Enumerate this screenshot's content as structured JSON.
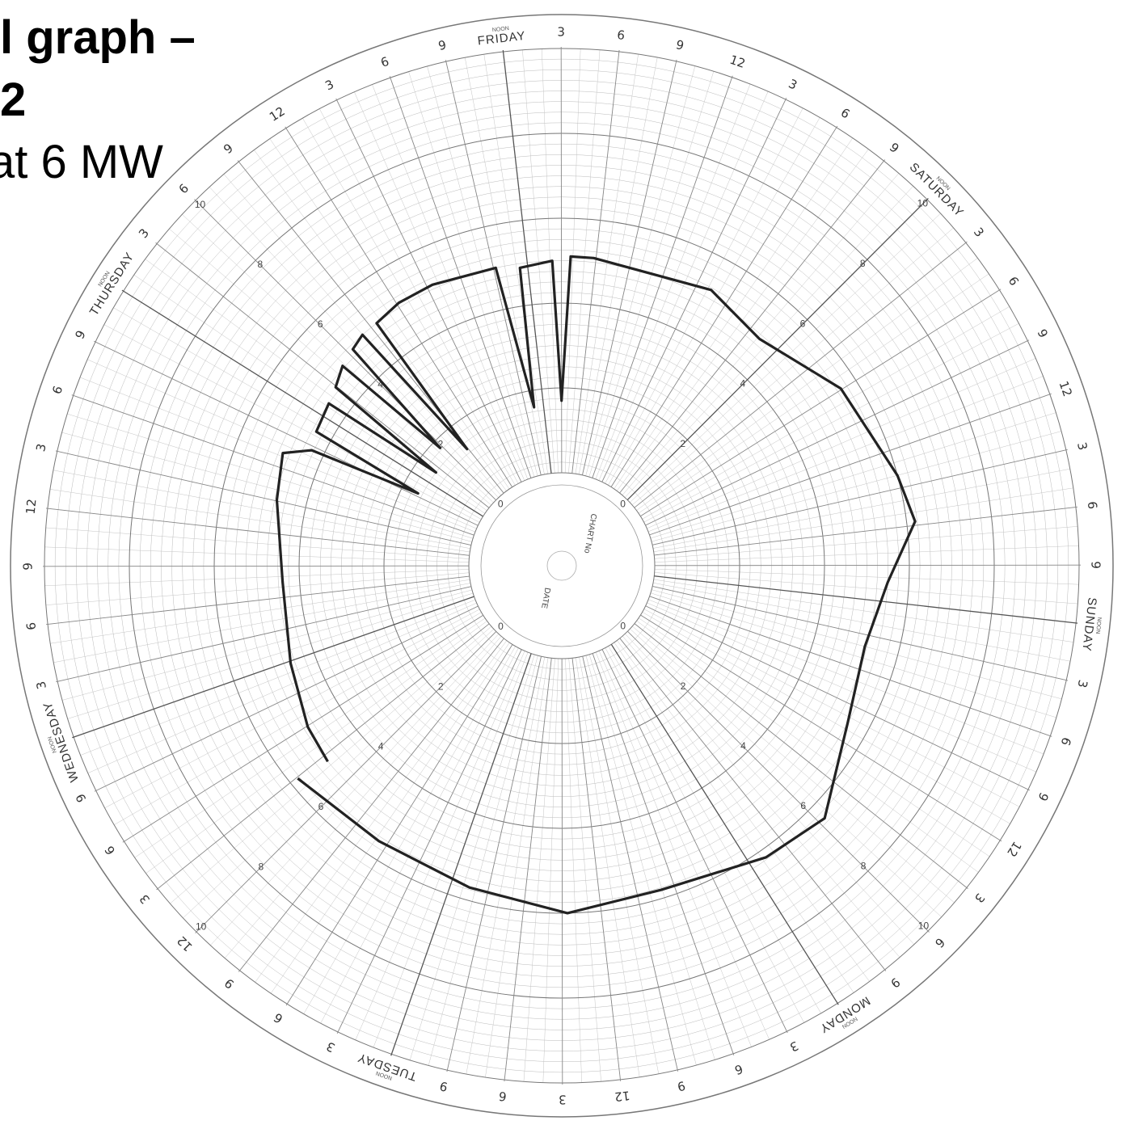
{
  "chart_data": {
    "type": "polar-line",
    "title_lines": [
      "l graph –",
      "2",
      "at 6 MW"
    ],
    "center_labels": [
      "CHART No",
      "DATE"
    ],
    "noon_label": "NOON",
    "xlim": [
      0,
      168
    ],
    "ylim": [
      0,
      10
    ],
    "yticks": [
      0,
      2,
      4,
      6,
      8,
      10
    ],
    "days": [
      {
        "value": 0,
        "label": "FRIDAY"
      },
      {
        "value": 24,
        "label": "SATURDAY"
      },
      {
        "value": 48,
        "label": "SUNDAY"
      },
      {
        "value": 72,
        "label": "MONDAY"
      },
      {
        "value": 96,
        "label": "TUESDAY"
      },
      {
        "value": 120,
        "label": "WEDNESDAY"
      },
      {
        "value": 144,
        "label": "THURSDAY"
      }
    ],
    "xticks": [
      3,
      6,
      9,
      {
        "value": 12,
        "label": "12"
      },
      {
        "value": 15,
        "label": "3"
      },
      {
        "value": 18,
        "label": "6"
      },
      {
        "value": 21,
        "label": "9"
      },
      {
        "value": 27,
        "label": "3"
      },
      {
        "value": 30,
        "label": "6"
      },
      {
        "value": 33,
        "label": "9"
      },
      {
        "value": 36,
        "label": "12"
      },
      {
        "value": 39,
        "label": "3"
      },
      {
        "value": 42,
        "label": "6"
      },
      {
        "value": 45,
        "label": "9"
      },
      {
        "value": 51,
        "label": "3"
      },
      {
        "value": 54,
        "label": "6"
      },
      {
        "value": 57,
        "label": "9"
      },
      {
        "value": 60,
        "label": "12"
      },
      {
        "value": 63,
        "label": "3"
      },
      {
        "value": 66,
        "label": "6"
      },
      {
        "value": 69,
        "label": "9"
      },
      {
        "value": 75,
        "label": "3"
      },
      {
        "value": 78,
        "label": "6"
      },
      {
        "value": 81,
        "label": "9"
      },
      {
        "value": 84,
        "label": "12"
      },
      {
        "value": 87,
        "label": "3"
      },
      {
        "value": 90,
        "label": "6"
      },
      {
        "value": 93,
        "label": "9"
      },
      {
        "value": 99,
        "label": "3"
      },
      {
        "value": 102,
        "label": "6"
      },
      {
        "value": 105,
        "label": "9"
      },
      {
        "value": 108,
        "label": "12"
      },
      {
        "value": 111,
        "label": "3"
      },
      {
        "value": 114,
        "label": "6"
      },
      {
        "value": 117,
        "label": "9"
      },
      {
        "value": 123,
        "label": "3"
      },
      {
        "value": 126,
        "label": "6"
      },
      {
        "value": 129,
        "label": "9"
      },
      {
        "value": 132,
        "label": "12"
      },
      {
        "value": 135,
        "label": "3"
      },
      {
        "value": 138,
        "label": "6"
      },
      {
        "value": 141,
        "label": "9"
      },
      {
        "value": 147,
        "label": "3"
      },
      {
        "value": 150,
        "label": "6"
      },
      {
        "value": 153,
        "label": "9"
      },
      {
        "value": 156,
        "label": "12"
      },
      {
        "value": 159,
        "label": "3"
      },
      {
        "value": 162,
        "label": "6"
      },
      {
        "value": 165,
        "label": "9"
      }
    ],
    "series": [
      {
        "color": "#222222",
        "x": [
          110.4,
          113.9,
          119.8,
          127.5,
          135.1,
          139.3,
          140.6,
          141.5,
          142.4,
          145.3,
          146.1,
          146.9,
          148.8,
          149.6,
          150.5,
          152.0,
          152.8,
          153.6,
          156.2,
          159.5,
          165.2,
          166.4,
          167.3,
          170.2,
          171.0,
          171.8,
          173.8,
          184.3,
          190.2,
          197.9,
          206.0,
          209.7,
          214.4,
          220.0,
          226.5,
          233.5,
          238.7,
          247.1,
          254.6,
          262.5,
          270.7,
          278.9
        ],
        "values": [
          5.0,
          4.9,
          4.6,
          4.4,
          4.7,
          4.9,
          4.3,
          1.6,
          4.4,
          4.5,
          1.5,
          4.6,
          4.8,
          1.8,
          4.9,
          5.0,
          1.35,
          5.0,
          5.1,
          5.1,
          5.0,
          1.6,
          4.9,
          5.0,
          1.7,
          5.1,
          5.1,
          5.2,
          4.9,
          5.6,
          6.0,
          6.2,
          5.5,
          5.2,
          5.5,
          6.4,
          6.2,
          5.8,
          6.0,
          5.7,
          5.6,
          5.8
        ]
      }
    ]
  }
}
